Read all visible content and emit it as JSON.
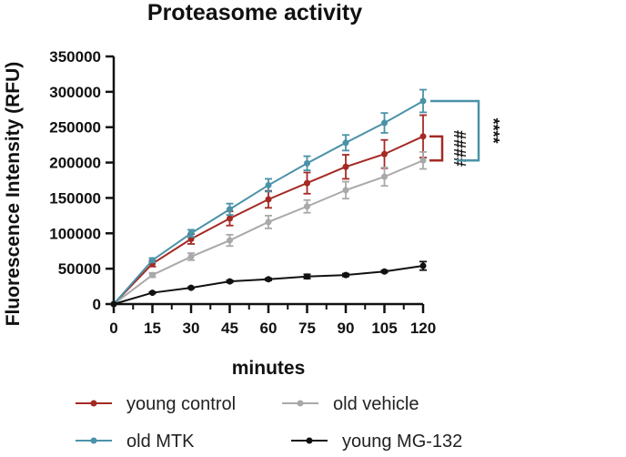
{
  "chart_data": {
    "type": "line",
    "title": "Proteasome activity",
    "xlabel": "minutes",
    "ylabel": "Fluorescence Intensity (RFU)",
    "x": [
      0,
      15,
      30,
      45,
      60,
      75,
      90,
      105,
      120
    ],
    "xlim": [
      0,
      120
    ],
    "ylim": [
      0,
      350000
    ],
    "x_ticks": [
      "0",
      "15",
      "30",
      "45",
      "60",
      "75",
      "90",
      "105",
      "120"
    ],
    "y_ticks": [
      "0",
      "50000",
      "100000",
      "150000",
      "200000",
      "250000",
      "300000",
      "350000"
    ],
    "grid": false,
    "legend_position": "bottom",
    "series": [
      {
        "name": "young control",
        "color": "#a52a24",
        "values": [
          0,
          57000,
          92000,
          121000,
          148000,
          171000,
          194000,
          212000,
          237000
        ],
        "errors": [
          0,
          4000,
          7000,
          10000,
          12000,
          15000,
          17000,
          20000,
          30000
        ]
      },
      {
        "name": "old vehicle",
        "color": "#a9a9a9",
        "values": [
          0,
          41000,
          67000,
          90000,
          116000,
          138000,
          161000,
          180000,
          203000
        ],
        "errors": [
          0,
          3000,
          5000,
          8000,
          9000,
          9000,
          12000,
          13000,
          12000
        ]
      },
      {
        "name": "old MTK",
        "color": "#4a92a8",
        "values": [
          0,
          62000,
          100000,
          134000,
          168000,
          199000,
          228000,
          256000,
          287000
        ],
        "errors": [
          0,
          3000,
          5000,
          8000,
          9000,
          10000,
          11000,
          14000,
          16000
        ]
      },
      {
        "name": "young MG-132",
        "color": "#111111",
        "values": [
          0,
          16000,
          23000,
          32000,
          35000,
          39000,
          41000,
          46000,
          54000
        ],
        "errors": [
          0,
          1000,
          1000,
          1500,
          1500,
          3000,
          2000,
          1500,
          6000
        ]
      }
    ],
    "annotations": [
      {
        "text": "####",
        "between": [
          "young control",
          "old vehicle"
        ],
        "at_x": 120,
        "color": "#a52a24"
      },
      {
        "text": "****",
        "between": [
          "old MTK",
          "old vehicle"
        ],
        "at_x": 120,
        "color": "#4a92a8"
      }
    ]
  }
}
